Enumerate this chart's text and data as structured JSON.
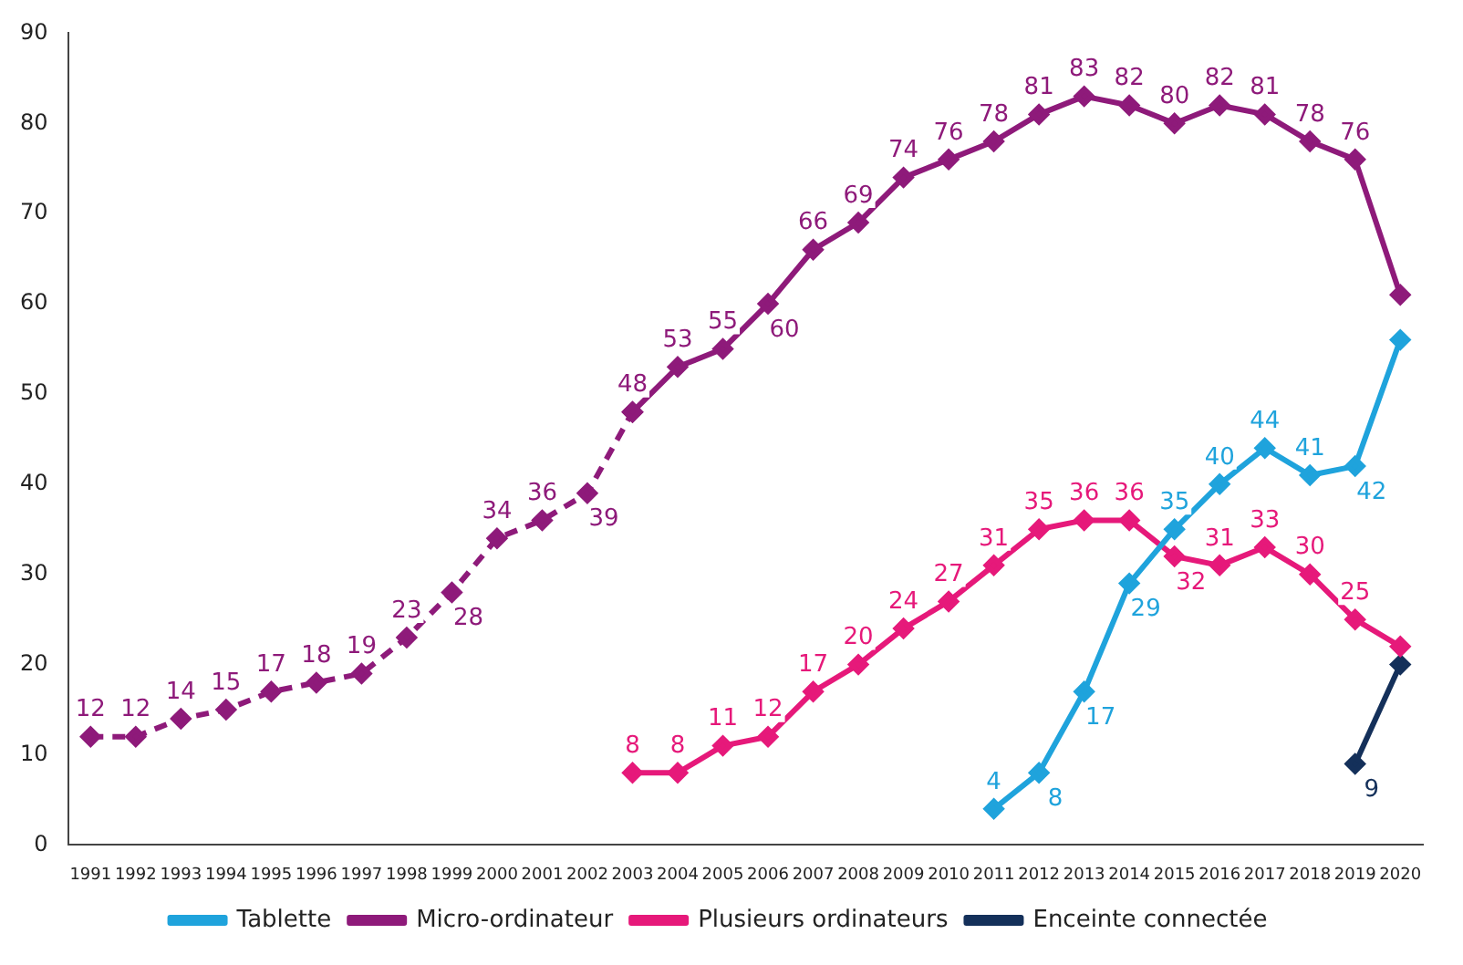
{
  "chart_data": {
    "type": "line",
    "categories": [
      "1991",
      "1992",
      "1993",
      "1994",
      "1995",
      "1996",
      "1997",
      "1998",
      "1999",
      "2000",
      "2001",
      "2002",
      "2003",
      "2004",
      "2005",
      "2006",
      "2007",
      "2008",
      "2009",
      "2010",
      "2011",
      "2012",
      "2013",
      "2014",
      "2015",
      "2016",
      "2017",
      "2018",
      "2019",
      "2020"
    ],
    "ylim": [
      0,
      90
    ],
    "yticks": [
      0,
      10,
      20,
      30,
      40,
      50,
      60,
      70,
      80,
      90
    ],
    "grid": false,
    "legend": "bottom",
    "marker": "diamond",
    "series": [
      {
        "name": "Tablette",
        "color": "#1fa3dc",
        "line_style": "solid",
        "values": [
          null,
          null,
          null,
          null,
          null,
          null,
          null,
          null,
          null,
          null,
          null,
          null,
          null,
          null,
          null,
          null,
          null,
          null,
          null,
          null,
          4,
          8,
          17,
          29,
          35,
          40,
          44,
          41,
          42,
          56
        ],
        "value_labels": [
          null,
          null,
          null,
          null,
          null,
          null,
          null,
          null,
          null,
          null,
          null,
          null,
          null,
          null,
          null,
          null,
          null,
          null,
          null,
          null,
          "4",
          "8",
          "17",
          "29",
          "35",
          "40",
          "44",
          "41",
          "42",
          null
        ]
      },
      {
        "color": "#8e1a7a",
        "line_style": "dashed",
        "values": [
          12,
          12,
          14,
          15,
          17,
          18,
          19,
          23,
          28,
          34,
          36,
          39,
          48,
          null,
          null,
          null,
          null,
          null,
          null,
          null,
          null,
          null,
          null,
          null,
          null,
          null,
          null,
          null,
          null,
          null
        ],
        "value_labels": [
          "12",
          "12",
          "14",
          "15",
          "17",
          "18",
          "19",
          "23",
          "28",
          "34",
          "36",
          "39",
          null,
          null,
          null,
          null,
          null,
          null,
          null,
          null,
          null,
          null,
          null,
          null,
          null,
          null,
          null,
          null,
          null,
          null
        ]
      },
      {
        "name": "Micro-ordinateur",
        "color": "#8e1a7a",
        "line_style": "solid",
        "values": [
          null,
          null,
          null,
          null,
          null,
          null,
          null,
          null,
          null,
          null,
          null,
          null,
          48,
          53,
          55,
          60,
          66,
          69,
          74,
          76,
          78,
          81,
          83,
          82,
          80,
          82,
          81,
          78,
          76,
          61
        ],
        "value_labels": [
          null,
          null,
          null,
          null,
          null,
          null,
          null,
          null,
          null,
          null,
          null,
          null,
          "48",
          "53",
          "55",
          "60",
          "66",
          "69",
          "74",
          "76",
          "78",
          "81",
          "83",
          "82",
          "80",
          "82",
          "81",
          "78",
          "76",
          null
        ]
      },
      {
        "name": "Plusieurs ordinateurs",
        "color": "#e6197a",
        "line_style": "solid",
        "values": [
          null,
          null,
          null,
          null,
          null,
          null,
          null,
          null,
          null,
          null,
          null,
          null,
          8,
          8,
          11,
          12,
          17,
          20,
          24,
          27,
          31,
          35,
          36,
          36,
          32,
          31,
          33,
          30,
          25,
          22
        ],
        "value_labels": [
          null,
          null,
          null,
          null,
          null,
          null,
          null,
          null,
          null,
          null,
          null,
          null,
          "8",
          "8",
          "11",
          "12",
          "17",
          "20",
          "24",
          "27",
          "31",
          "35",
          "36",
          "36",
          "32",
          "31",
          "33",
          "30",
          "25",
          null
        ]
      },
      {
        "name": "Enceinte connectée",
        "color": "#14305a",
        "line_style": "solid",
        "values": [
          null,
          null,
          null,
          null,
          null,
          null,
          null,
          null,
          null,
          null,
          null,
          null,
          null,
          null,
          null,
          null,
          null,
          null,
          null,
          null,
          null,
          null,
          null,
          null,
          null,
          null,
          null,
          null,
          9,
          20
        ],
        "value_labels": [
          null,
          null,
          null,
          null,
          null,
          null,
          null,
          null,
          null,
          null,
          null,
          null,
          null,
          null,
          null,
          null,
          null,
          null,
          null,
          null,
          null,
          null,
          null,
          null,
          null,
          null,
          null,
          null,
          "9",
          null
        ]
      }
    ]
  }
}
